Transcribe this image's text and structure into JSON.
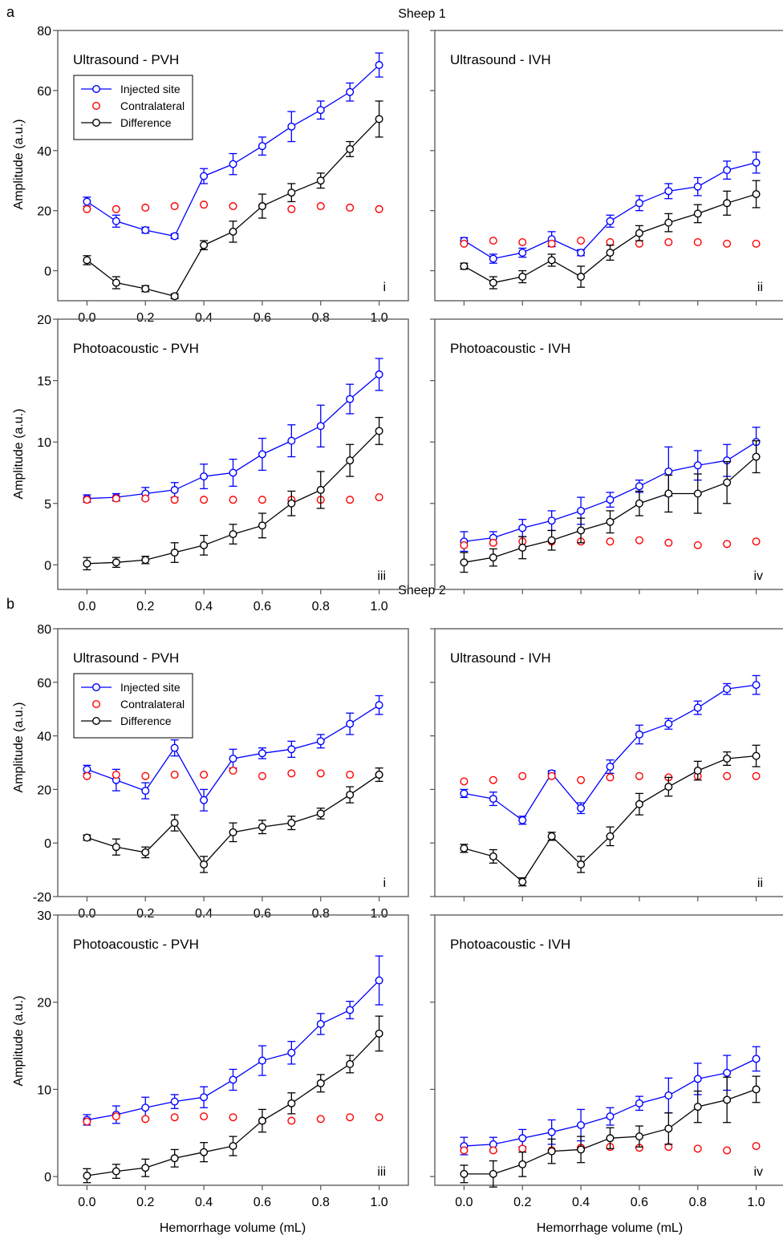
{
  "figure": {
    "panel_a": {
      "letter": "a",
      "title": "Sheep 1"
    },
    "panel_b": {
      "letter": "b",
      "title": "Sheep 2"
    },
    "x_axis_label": "Hemorrhage volume (mL)",
    "y_axis_label": "Amplitude (a.u.)",
    "legend": [
      "Injected site",
      "Contralateral",
      "Difference"
    ],
    "colors": {
      "injected": "#0000ff",
      "contralateral": "#ff0000",
      "difference": "#000000",
      "frame": "#555555"
    }
  },
  "chart_data": [
    {
      "type": "line",
      "id": "s1-us-pvh",
      "sheep": "Sheep 1",
      "title": "Ultrasound - PVH",
      "tag": "i",
      "xlabel": "",
      "ylabel": "Amplitude (a.u.)",
      "x": [
        0.0,
        0.1,
        0.2,
        0.3,
        0.4,
        0.5,
        0.6,
        0.7,
        0.8,
        0.9,
        1.0
      ],
      "xlim": [
        -0.1,
        1.1
      ],
      "ylim": [
        -10,
        80
      ],
      "xticks": [
        "0.0",
        "0.2",
        "0.4",
        "0.6",
        "0.8",
        "1.0"
      ],
      "yticks": [
        0,
        20,
        40,
        60,
        80
      ],
      "legend": true,
      "series": [
        {
          "name": "Injected site",
          "values": [
            23,
            16.5,
            13.5,
            11.5,
            31.5,
            35.5,
            41.5,
            48,
            53.5,
            59.5,
            68.5
          ],
          "err": [
            1.5,
            2,
            1,
            0.8,
            2.5,
            3.5,
            3,
            5,
            3,
            3,
            4
          ]
        },
        {
          "name": "Contralateral",
          "values": [
            20.5,
            20.5,
            21,
            21.5,
            22,
            21.5,
            21.5,
            20.5,
            21.5,
            21,
            20.5
          ]
        },
        {
          "name": "Difference",
          "values": [
            3.5,
            -4,
            -6,
            -8.5,
            8.5,
            13,
            21.5,
            26,
            30,
            40.5,
            50.5
          ],
          "err": [
            1.5,
            2,
            1,
            0.8,
            1.5,
            3.5,
            4,
            3,
            2.5,
            2.5,
            6
          ]
        }
      ]
    },
    {
      "type": "line",
      "id": "s1-us-ivh",
      "sheep": "Sheep 1",
      "title": "Ultrasound - IVH",
      "tag": "ii",
      "xlabel": "",
      "ylabel": "",
      "x": [
        0.0,
        0.1,
        0.2,
        0.3,
        0.4,
        0.5,
        0.6,
        0.7,
        0.8,
        0.9,
        1.0
      ],
      "xlim": [
        -0.1,
        1.1
      ],
      "ylim": [
        -10,
        80
      ],
      "xticks": [],
      "yticks": [
        0,
        20,
        40,
        60,
        80
      ],
      "legend": false,
      "series": [
        {
          "name": "Injected site",
          "values": [
            10,
            4,
            6,
            10.5,
            6,
            16.5,
            22.5,
            26.5,
            28,
            33.5,
            36
          ],
          "err": [
            1,
            1.5,
            1.5,
            2.5,
            1,
            2,
            2.5,
            2.5,
            3,
            3,
            3.5
          ]
        },
        {
          "name": "Contralateral",
          "values": [
            9,
            10,
            9.5,
            9,
            10,
            9.5,
            9,
            9.5,
            9.5,
            9,
            9
          ]
        },
        {
          "name": "Difference",
          "values": [
            1.5,
            -4,
            -2,
            3.5,
            -2,
            6,
            12.5,
            16,
            19,
            22.5,
            25.5
          ],
          "err": [
            1,
            2,
            2,
            2,
            3.5,
            2.5,
            2.5,
            3,
            3,
            4,
            4.5
          ]
        }
      ]
    },
    {
      "type": "line",
      "id": "s1-pa-pvh",
      "sheep": "Sheep 1",
      "title": "Photoacoustic - PVH",
      "tag": "iii",
      "xlabel": "",
      "ylabel": "Amplitude (a.u.)",
      "x": [
        0.0,
        0.1,
        0.2,
        0.3,
        0.4,
        0.5,
        0.6,
        0.7,
        0.8,
        0.9,
        1.0
      ],
      "xlim": [
        -0.1,
        1.1
      ],
      "ylim": [
        -2,
        20
      ],
      "xticks": [
        "0.0",
        "0.2",
        "0.4",
        "0.6",
        "0.8",
        "1.0"
      ],
      "yticks": [
        0,
        5,
        10,
        15,
        20
      ],
      "legend": false,
      "series": [
        {
          "name": "Injected site",
          "values": [
            5.4,
            5.5,
            5.8,
            6.1,
            7.2,
            7.5,
            9.0,
            10.1,
            11.3,
            13.5,
            15.5
          ],
          "err": [
            0.3,
            0.3,
            0.5,
            0.6,
            1.0,
            1.1,
            1.3,
            1.3,
            1.7,
            1.2,
            1.3
          ]
        },
        {
          "name": "Contralateral",
          "values": [
            5.3,
            5.4,
            5.4,
            5.3,
            5.3,
            5.3,
            5.3,
            5.3,
            5.3,
            5.3,
            5.5
          ]
        },
        {
          "name": "Difference",
          "values": [
            0.1,
            0.2,
            0.4,
            1.0,
            1.6,
            2.5,
            3.2,
            5.0,
            6.1,
            8.5,
            10.9
          ],
          "err": [
            0.5,
            0.4,
            0.3,
            0.8,
            0.8,
            0.8,
            1.0,
            1.0,
            1.5,
            1.3,
            1.1
          ]
        }
      ]
    },
    {
      "type": "line",
      "id": "s1-pa-ivh",
      "sheep": "Sheep 1",
      "title": "Photoacoustic - IVH",
      "tag": "iv",
      "xlabel": "",
      "ylabel": "",
      "x": [
        0.0,
        0.1,
        0.2,
        0.3,
        0.4,
        0.5,
        0.6,
        0.7,
        0.8,
        0.9,
        1.0
      ],
      "xlim": [
        -0.1,
        1.1
      ],
      "ylim": [
        -2,
        20
      ],
      "xticks": [],
      "yticks": [
        0,
        5,
        10,
        15,
        20
      ],
      "legend": false,
      "series": [
        {
          "name": "Injected site",
          "values": [
            1.9,
            2.2,
            3.0,
            3.6,
            4.4,
            5.3,
            6.4,
            7.6,
            8.1,
            8.5,
            10.0
          ],
          "err": [
            0.8,
            0.5,
            0.7,
            0.8,
            1.1,
            0.6,
            0.5,
            2.0,
            1.2,
            1.3,
            1.2
          ]
        },
        {
          "name": "Contralateral",
          "values": [
            1.6,
            1.8,
            1.9,
            1.9,
            1.9,
            1.9,
            2.0,
            1.8,
            1.6,
            1.7,
            1.9
          ]
        },
        {
          "name": "Difference",
          "values": [
            0.2,
            0.6,
            1.4,
            2.0,
            2.8,
            3.5,
            5.0,
            5.8,
            5.8,
            6.7,
            8.8
          ],
          "err": [
            0.8,
            0.7,
            0.9,
            0.8,
            1.0,
            0.9,
            1.0,
            1.5,
            1.6,
            1.7,
            1.3
          ]
        }
      ]
    },
    {
      "type": "line",
      "id": "s2-us-pvh",
      "sheep": "Sheep 2",
      "title": "Ultrasound - PVH",
      "tag": "i",
      "xlabel": "",
      "ylabel": "Amplitude (a.u.)",
      "x": [
        0.0,
        0.1,
        0.2,
        0.3,
        0.4,
        0.5,
        0.6,
        0.7,
        0.8,
        0.9,
        1.0
      ],
      "xlim": [
        -0.1,
        1.1
      ],
      "ylim": [
        -20,
        80
      ],
      "xticks": [
        "0.0",
        "0.2",
        "0.4",
        "0.6",
        "0.8",
        "1.0"
      ],
      "yticks": [
        -20,
        0,
        20,
        40,
        60,
        80
      ],
      "legend": true,
      "series": [
        {
          "name": "Injected site",
          "values": [
            27.5,
            23.5,
            19.5,
            35.5,
            16,
            31.5,
            33.5,
            35,
            38,
            44.5,
            51.5
          ],
          "err": [
            1.5,
            4,
            3,
            3,
            4,
            3.5,
            2,
            3,
            2.5,
            4,
            3.5
          ]
        },
        {
          "name": "Contralateral",
          "values": [
            25,
            25.5,
            25,
            25.5,
            25.5,
            27,
            25,
            26,
            26,
            25.5,
            25.5
          ]
        },
        {
          "name": "Difference",
          "values": [
            2,
            -1.5,
            -3.5,
            7.5,
            -8,
            4,
            6,
            7.5,
            11,
            18,
            25.5
          ],
          "err": [
            1,
            3,
            2,
            3,
            3,
            3.5,
            2.5,
            2.5,
            2,
            3,
            2.5
          ]
        }
      ]
    },
    {
      "type": "line",
      "id": "s2-us-ivh",
      "sheep": "Sheep 2",
      "title": "Ultrasound - IVH",
      "tag": "ii",
      "xlabel": "",
      "ylabel": "",
      "x": [
        0.0,
        0.1,
        0.2,
        0.3,
        0.4,
        0.5,
        0.6,
        0.7,
        0.8,
        0.9,
        1.0
      ],
      "xlim": [
        -0.1,
        1.1
      ],
      "ylim": [
        -20,
        80
      ],
      "xticks": [],
      "yticks": [
        -20,
        0,
        20,
        40,
        60,
        80
      ],
      "legend": false,
      "series": [
        {
          "name": "Injected site",
          "values": [
            18.5,
            16.5,
            8.5,
            26,
            13,
            28.5,
            40.5,
            44.5,
            50.5,
            57.5,
            59
          ],
          "err": [
            1.5,
            2.5,
            1.5,
            1,
            2,
            2.5,
            3.5,
            2,
            2.5,
            2,
            3.5
          ]
        },
        {
          "name": "Contralateral",
          "values": [
            23,
            23.5,
            25,
            25,
            23.5,
            24.5,
            25,
            24.5,
            25,
            25,
            25
          ]
        },
        {
          "name": "Difference",
          "values": [
            -2,
            -5,
            -14.5,
            2.5,
            -8,
            2.5,
            14.5,
            21,
            27,
            31.5,
            32.5
          ],
          "err": [
            1.5,
            2.5,
            1.5,
            1.5,
            3,
            3.5,
            4,
            3.5,
            3.5,
            2.5,
            4
          ]
        }
      ]
    },
    {
      "type": "line",
      "id": "s2-pa-pvh",
      "sheep": "Sheep 2",
      "title": "Photoacoustic - PVH",
      "tag": "iii",
      "xlabel": "Hemorrhage volume (mL)",
      "ylabel": "Amplitude (a.u.)",
      "x": [
        0.0,
        0.1,
        0.2,
        0.3,
        0.4,
        0.5,
        0.6,
        0.7,
        0.8,
        0.9,
        1.0
      ],
      "xlim": [
        -0.1,
        1.1
      ],
      "ylim": [
        -1,
        30
      ],
      "xticks": [
        "0.0",
        "0.2",
        "0.4",
        "0.6",
        "0.8",
        "1.0"
      ],
      "yticks": [
        0,
        10,
        20,
        30
      ],
      "legend": false,
      "series": [
        {
          "name": "Injected site",
          "values": [
            6.5,
            7.1,
            7.9,
            8.6,
            9.1,
            11.1,
            13.3,
            14.2,
            17.5,
            19.1,
            22.5
          ],
          "err": [
            0.6,
            1.0,
            1.2,
            0.8,
            1.2,
            1.2,
            1.7,
            1.3,
            1.2,
            1.0,
            2.8
          ]
        },
        {
          "name": "Contralateral",
          "values": [
            6.3,
            6.9,
            6.6,
            6.8,
            6.9,
            6.8,
            6.4,
            6.4,
            6.6,
            6.8,
            6.8
          ]
        },
        {
          "name": "Difference",
          "values": [
            0.1,
            0.6,
            1.0,
            2.1,
            2.8,
            3.5,
            6.4,
            8.4,
            10.7,
            12.9,
            16.4
          ],
          "err": [
            0.8,
            0.8,
            1.0,
            1.0,
            1.1,
            1.1,
            1.3,
            1.2,
            1.0,
            1.0,
            2.0
          ]
        }
      ]
    },
    {
      "type": "line",
      "id": "s2-pa-ivh",
      "sheep": "Sheep 2",
      "title": "Photoacoustic - IVH",
      "tag": "iv",
      "xlabel": "Hemorrhage volume (mL)",
      "ylabel": "",
      "x": [
        0.0,
        0.1,
        0.2,
        0.3,
        0.4,
        0.5,
        0.6,
        0.7,
        0.8,
        0.9,
        1.0
      ],
      "xlim": [
        -0.1,
        1.1
      ],
      "ylim": [
        -1,
        30
      ],
      "xticks": [
        "0.0",
        "0.2",
        "0.4",
        "0.6",
        "0.8",
        "1.0"
      ],
      "yticks": [
        0,
        10,
        20,
        30
      ],
      "legend": false,
      "series": [
        {
          "name": "Injected site",
          "values": [
            3.5,
            3.7,
            4.4,
            5.1,
            5.9,
            6.9,
            8.4,
            9.3,
            11.2,
            11.9,
            13.5
          ],
          "err": [
            1.0,
            0.8,
            1.0,
            1.4,
            1.8,
            1.0,
            0.8,
            2.0,
            1.8,
            2.0,
            1.4
          ]
        },
        {
          "name": "Contralateral",
          "values": [
            3.0,
            3.0,
            3.2,
            3.0,
            3.3,
            3.4,
            3.3,
            3.4,
            3.2,
            3.0,
            3.5
          ]
        },
        {
          "name": "Difference",
          "values": [
            0.3,
            0.3,
            1.4,
            2.9,
            3.1,
            4.4,
            4.6,
            5.5,
            8.0,
            8.8,
            10.0
          ],
          "err": [
            1.0,
            1.5,
            1.4,
            1.4,
            1.5,
            1.2,
            1.2,
            1.8,
            1.8,
            2.6,
            1.5
          ]
        }
      ]
    }
  ]
}
